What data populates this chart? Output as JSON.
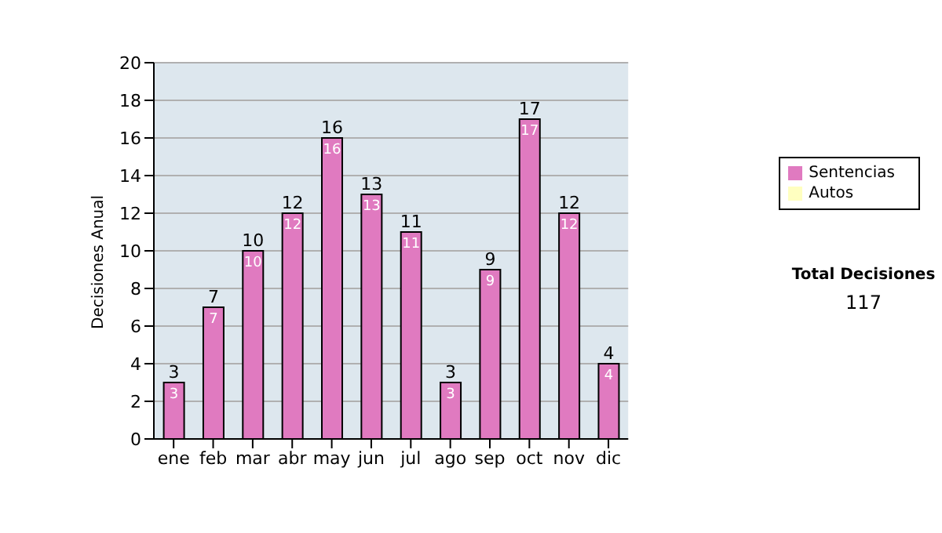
{
  "chart_data": {
    "type": "bar",
    "ylabel": "Decisiones Anual",
    "categories": [
      "ene",
      "feb",
      "mar",
      "abr",
      "may",
      "jun",
      "jul",
      "ago",
      "sep",
      "oct",
      "nov",
      "dic"
    ],
    "series": [
      {
        "name": "Sentencias",
        "color": "#e07ac0",
        "values": [
          3,
          7,
          10,
          12,
          16,
          13,
          11,
          3,
          9,
          17,
          12,
          4
        ],
        "value_labels": [
          "3",
          "7",
          "10",
          "12",
          "16",
          "13",
          "11",
          "3",
          "9",
          "17",
          "12",
          "4"
        ]
      },
      {
        "name": "Autos",
        "color": "#ffffc0",
        "values": [
          0,
          0,
          0,
          0,
          0,
          0,
          0,
          0,
          0,
          0,
          0,
          0
        ],
        "value_labels": [
          null,
          null,
          null,
          null,
          null,
          null,
          null,
          null,
          null,
          null,
          null,
          null
        ]
      }
    ],
    "stacked": true,
    "totals": [
      "3",
      "7",
      "10",
      "12",
      "16",
      "13",
      "11",
      "3",
      "9",
      "17",
      "12",
      "4"
    ],
    "ylim": [
      0,
      20
    ],
    "yticks": [
      0,
      2,
      4,
      6,
      8,
      10,
      12,
      14,
      16,
      18,
      20
    ],
    "grid": "y",
    "legend": "right",
    "annotations": [
      "Total Decisiones",
      "117"
    ]
  }
}
